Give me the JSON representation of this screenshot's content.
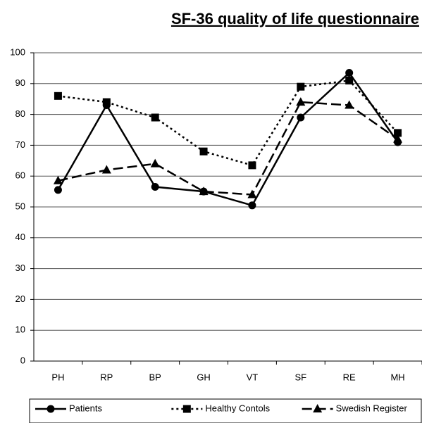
{
  "chart_data": {
    "type": "line",
    "title": "SF-36 quality of life questionnaire",
    "categories": [
      "PH",
      "RP",
      "BP",
      "GH",
      "VT",
      "SF",
      "RE",
      "MH"
    ],
    "series": [
      {
        "name": "Patients",
        "color": "#000000",
        "dash": "solid",
        "marker": "circle",
        "values": [
          55.5,
          83,
          56.5,
          55,
          50.5,
          79,
          93.5,
          71
        ]
      },
      {
        "name": "Healthy Contols",
        "color": "#000000",
        "dash": "dotted",
        "marker": "square",
        "values": [
          86,
          84,
          79,
          68,
          63.5,
          89,
          91,
          74
        ]
      },
      {
        "name": "Swedish Register",
        "color": "#000000",
        "dash": "dashed",
        "marker": "triangle",
        "values": [
          58.5,
          62,
          64,
          55,
          54,
          84,
          83,
          72
        ]
      }
    ],
    "ylim": [
      0,
      100
    ],
    "yticks": [
      0,
      10,
      20,
      30,
      40,
      50,
      60,
      70,
      80,
      90,
      100
    ],
    "grid": true,
    "legend": "bottom"
  }
}
